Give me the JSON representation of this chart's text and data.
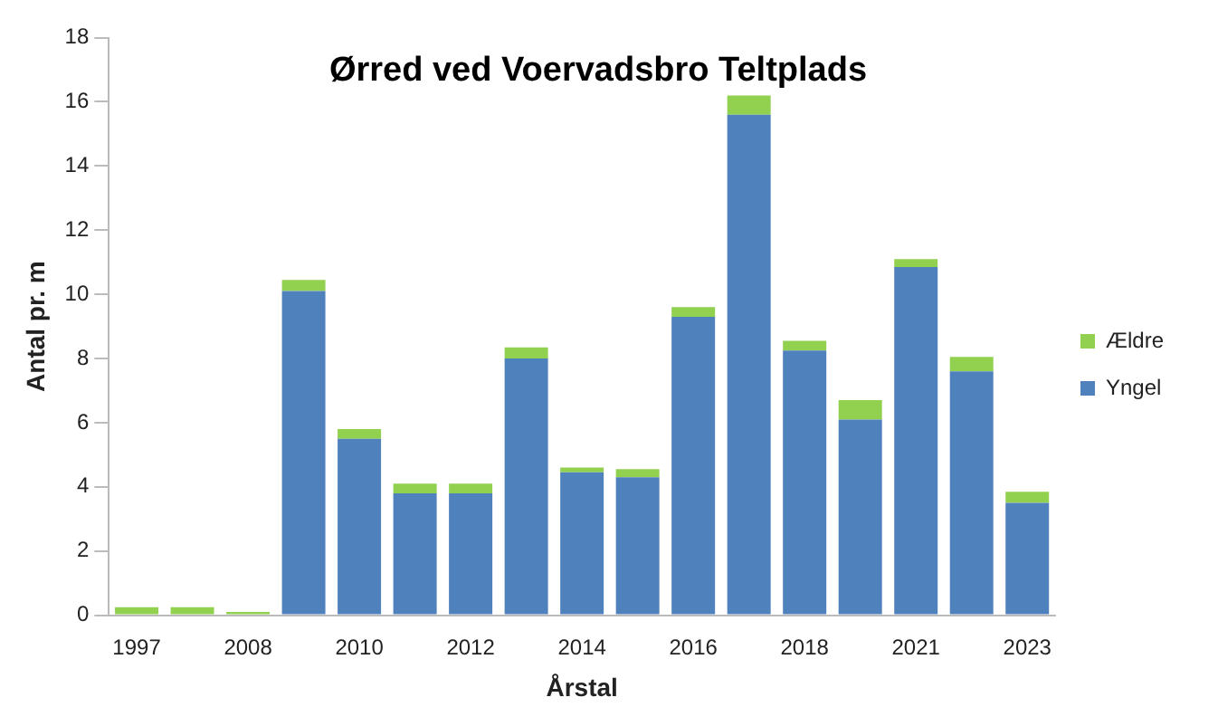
{
  "chart_data": {
    "type": "bar",
    "stacked": true,
    "title": "Ørred ved Voervadsbro Teltplads",
    "xlabel": "Årstal",
    "ylabel": "Antal pr. m",
    "categories": [
      "1997",
      null,
      "2008",
      null,
      "2010",
      null,
      "2012",
      null,
      "2014",
      null,
      "2016",
      null,
      "2018",
      null,
      "2021",
      null,
      "2023"
    ],
    "series": [
      {
        "name": "Yngel",
        "color": "#4f81bd",
        "values": [
          0,
          0,
          0,
          10.1,
          5.5,
          3.8,
          3.8,
          8.0,
          4.45,
          4.3,
          9.3,
          15.6,
          8.25,
          6.1,
          10.85,
          7.6,
          3.5
        ]
      },
      {
        "name": "Ældre",
        "color": "#92d050",
        "values": [
          0.25,
          0.25,
          0.1,
          0.35,
          0.3,
          0.3,
          0.3,
          0.35,
          0.15,
          0.25,
          0.3,
          0.6,
          0.3,
          0.6,
          0.25,
          0.45,
          0.35
        ]
      }
    ],
    "ylim": [
      0,
      18
    ],
    "yticks": [
      0,
      2,
      4,
      6,
      8,
      10,
      12,
      14,
      16,
      18
    ],
    "grid": false,
    "legend": "right"
  }
}
